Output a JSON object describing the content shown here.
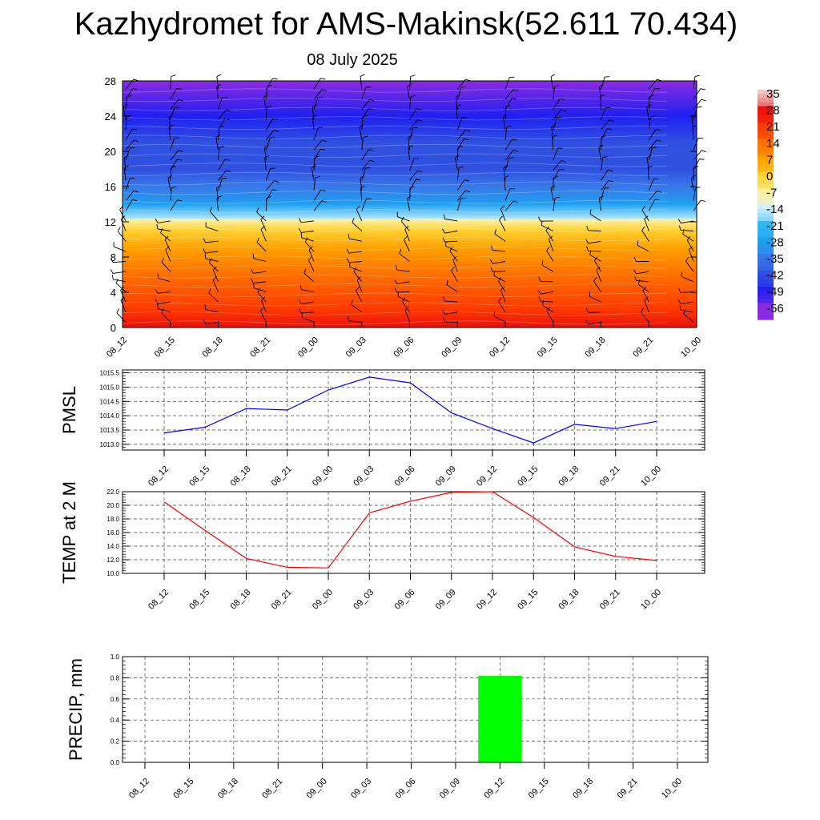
{
  "header": {
    "title": "Kazhydromet for AMS-Makinsk(52.611 70.434)",
    "subtitle": "08 July 2025"
  },
  "chart_data": [
    {
      "type": "heatmap",
      "description_kind": "time-height cross section with wind barbs",
      "x_tick_labels": [
        "08_12",
        "08_15",
        "08_18",
        "08_21",
        "09_00",
        "09_03",
        "09_06",
        "09_09",
        "09_12",
        "09_15",
        "09_18",
        "09_21",
        "10_00"
      ],
      "y_tick_labels": [
        "0",
        "4",
        "8",
        "12",
        "16",
        "20",
        "24",
        "28"
      ],
      "ylim": [
        0,
        28
      ],
      "colorbar_labels": [
        "35",
        "28",
        "21",
        "14",
        "7",
        "0",
        "-7",
        "-14",
        "-21",
        "-28",
        "-35",
        "-42",
        "-49",
        "-56"
      ],
      "colorbar_values": [
        35,
        28,
        21,
        14,
        7,
        0,
        -7,
        -14,
        -21,
        -28,
        -35,
        -42,
        -49,
        -56
      ],
      "colorbar_colors": [
        "#f0c8c8",
        "#e81010",
        "#ff3800",
        "#ff7000",
        "#ffa000",
        "#ffd030",
        "#fff0a0",
        "#d0f0ff",
        "#30b8f0",
        "#20a0f0",
        "#3878e8",
        "#3050e0",
        "#2020f0",
        "#8a2be2"
      ],
      "field_profile": [
        {
          "level": 0,
          "value": 28
        },
        {
          "level": 2,
          "value": 21
        },
        {
          "level": 6,
          "value": 14
        },
        {
          "level": 9,
          "value": 7
        },
        {
          "level": 11,
          "value": 0
        },
        {
          "level": 12.2,
          "value": -7
        },
        {
          "level": 12.5,
          "value": -16
        },
        {
          "level": 14,
          "value": -28
        },
        {
          "level": 16,
          "value": -35
        },
        {
          "level": 18,
          "value": -42
        },
        {
          "level": 21,
          "value": -42
        },
        {
          "level": 24,
          "value": -49
        },
        {
          "level": 28,
          "value": -56
        }
      ]
    },
    {
      "type": "line",
      "ylabel": "PMSL",
      "categories": [
        "08_12",
        "08_15",
        "08_18",
        "08_21",
        "09_00",
        "09_03",
        "09_06",
        "09_09",
        "09_12",
        "09_15",
        "09_18",
        "09_21",
        "10_00"
      ],
      "series": [
        {
          "values": [
            1013.4,
            1013.6,
            1014.25,
            1014.2,
            1014.9,
            1015.35,
            1015.15,
            1014.1,
            1013.55,
            1013.05,
            1013.7,
            1013.55,
            1013.8
          ],
          "color": "#0000ff"
        }
      ],
      "ylim": [
        1012.8,
        1015.6
      ],
      "y_tick_labels": [
        "1013.0",
        "1013.5",
        "1014.0",
        "1014.5",
        "1015.0",
        "1015.5"
      ],
      "y_ticks": [
        1013.0,
        1013.5,
        1014.0,
        1014.5,
        1015.0,
        1015.5
      ]
    },
    {
      "type": "line",
      "ylabel": "TEMP at 2 M",
      "categories": [
        "08_12",
        "08_15",
        "08_18",
        "08_21",
        "09_00",
        "09_03",
        "09_06",
        "09_09",
        "09_12",
        "09_15",
        "09_18",
        "09_21",
        "10_00"
      ],
      "series": [
        {
          "values": [
            20.5,
            16.3,
            12.2,
            10.9,
            10.8,
            18.9,
            20.6,
            21.9,
            22.0,
            18.2,
            13.9,
            12.5,
            11.9
          ],
          "color": "#ff0000"
        }
      ],
      "ylim": [
        10.0,
        22.0
      ],
      "y_tick_labels": [
        "10.0",
        "12.0",
        "14.0",
        "16.0",
        "18.0",
        "20.0",
        "22.0"
      ],
      "y_ticks": [
        10,
        12,
        14,
        16,
        18,
        20,
        22
      ]
    },
    {
      "type": "bar",
      "ylabel": "PRECIP, mm",
      "categories": [
        "08_12",
        "08_15",
        "08_18",
        "08_21",
        "09_00",
        "09_03",
        "09_06",
        "09_09",
        "09_12",
        "09_15",
        "09_18",
        "09_21",
        "10_00"
      ],
      "values": [
        0,
        0,
        0,
        0,
        0,
        0,
        0,
        0,
        0.82,
        0,
        0,
        0,
        0
      ],
      "bar_color": "#00ff00",
      "ylim": [
        0.0,
        1.0
      ],
      "y_tick_labels": [
        "0.0",
        "0.2",
        "0.4",
        "0.6",
        "0.8",
        "1.0"
      ],
      "y_ticks": [
        0.0,
        0.2,
        0.4,
        0.6,
        0.8,
        1.0
      ]
    }
  ]
}
